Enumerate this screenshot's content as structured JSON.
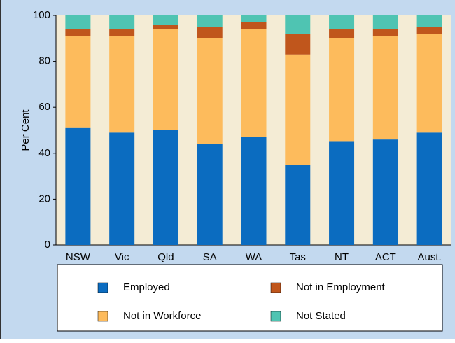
{
  "chart_data": {
    "type": "stacked_bar",
    "y_axis_label": "Per Cent",
    "categories": [
      "NSW",
      "Vic",
      "Qld",
      "SA",
      "WA",
      "Tas",
      "NT",
      "ACT",
      "Aust."
    ],
    "series": [
      {
        "name": "Employed",
        "color": "#0b6cc0",
        "values": [
          51,
          49,
          50,
          44,
          47,
          35,
          45,
          46,
          49
        ]
      },
      {
        "name": "Not in Workforce",
        "color": "#fdbb5c",
        "values": [
          40,
          42,
          44,
          46,
          47,
          48,
          45,
          45,
          43
        ]
      },
      {
        "name": "Not in Employment",
        "color": "#c0561c",
        "values": [
          3,
          3,
          2,
          5,
          3,
          9,
          4,
          3,
          3
        ]
      },
      {
        "name": "Not Stated",
        "color": "#4fc4b2",
        "values": [
          6,
          6,
          4,
          5,
          3,
          8,
          6,
          6,
          5
        ]
      }
    ],
    "ylim": [
      0,
      100
    ],
    "yticks": [
      0,
      20,
      40,
      60,
      80,
      100
    ]
  }
}
